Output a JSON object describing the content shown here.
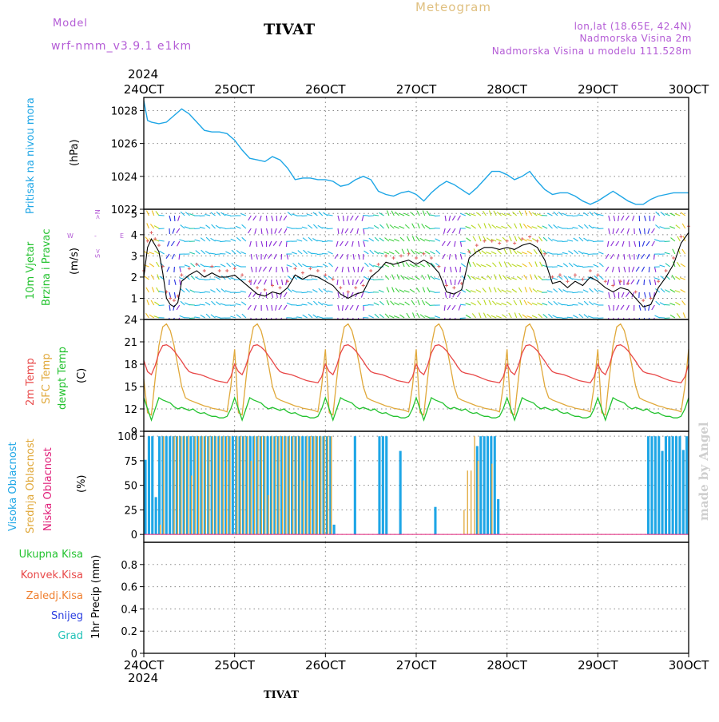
{
  "header": {
    "model_label": "Model",
    "model_name": "wrf-nmm_v3.9.1 e1km",
    "station": "TIVAT",
    "meteogram": "Meteogram",
    "lonlat": "lon,lat (18.65E, 42.4N)",
    "altitude": "Nadmorska Visina 2m",
    "model_altitude": "Nadmorska Visina u modelu 111.528m",
    "footer_station": "TIVAT",
    "watermark": "made by Angel"
  },
  "colors": {
    "pressure": "#1ea6e6",
    "t2m": "#e84848",
    "sfc": "#e0a83a",
    "dew": "#22c22e",
    "wind_speed": "#000000",
    "gust": "#e06060",
    "high_cloud": "#1ea6e6",
    "mid_cloud": "#e0a83a",
    "low_cloud": "#e0207a",
    "axis_label_blue": "#1ea6e6",
    "axis_label_green": "#22c22e",
    "model_purple": "#b45cd6"
  },
  "time_axis": {
    "year": "2024",
    "ticks": [
      "24OCT",
      "25OCT",
      "26OCT",
      "27OCT",
      "28OCT",
      "29OCT",
      "30OCT"
    ]
  },
  "panels": {
    "pressure": {
      "label": "Pritisak na nivou mora",
      "unit": "(hPa)",
      "yticks": [
        "1022",
        "1024",
        "1026",
        "1028"
      ]
    },
    "wind": {
      "label1": "10m Vjetar",
      "label2": "Brzina i Pravac",
      "unit": "(m/s)",
      "compass_w": "W",
      "compass_e": "E",
      "compass_s": "S<",
      "compass_n": ">N",
      "compass_dash": "-",
      "yticks": [
        "1",
        "2",
        "3",
        "4",
        "5"
      ]
    },
    "temp": {
      "label1": "2m Temp",
      "label2": "SFC Temp",
      "label3": "dewpt Temp",
      "unit": "(C)",
      "yticks": [
        "9",
        "12",
        "15",
        "18",
        "21",
        "24"
      ]
    },
    "cloud": {
      "label1": "Visoka Oblacnost",
      "label2": "Srednja Oblacnost",
      "label3": "Niska Oblacnost",
      "unit": "(%)",
      "yticks": [
        "0",
        "25",
        "50",
        "75",
        "100"
      ]
    },
    "precip": {
      "label1": "Ukupna Kisa",
      "label2": "Konvek.Kisa",
      "label3": "Zaledj.Kisa",
      "label4": "Snijeg",
      "label5": "Grad",
      "unit": "1hr Precip (mm)",
      "yticks": [
        "0",
        "0.2",
        "0.4",
        "0.6",
        "0.8"
      ]
    }
  },
  "chart_data": [
    {
      "type": "line",
      "name": "pressure",
      "x_hours": [
        0,
        1,
        2,
        4,
        6,
        8,
        10,
        12,
        14,
        16,
        18,
        20,
        22,
        24,
        26,
        28,
        30,
        32,
        34,
        36,
        38,
        40,
        42,
        44,
        46,
        48,
        50,
        52,
        54,
        56,
        58,
        60,
        62,
        64,
        66,
        68,
        70,
        72,
        74,
        76,
        78,
        80,
        82,
        84,
        86,
        88,
        90,
        92,
        94,
        96,
        98,
        100,
        102,
        104,
        106,
        108,
        110,
        112,
        114,
        116,
        118,
        120,
        122,
        124,
        126,
        128,
        130,
        132,
        134,
        136,
        138,
        140,
        142,
        144
      ],
      "values": [
        1028.6,
        1027.4,
        1027.3,
        1027.2,
        1027.3,
        1027.7,
        1028.1,
        1027.8,
        1027.3,
        1026.8,
        1026.7,
        1026.7,
        1026.6,
        1026.2,
        1025.6,
        1025.1,
        1025.0,
        1024.9,
        1025.2,
        1025.0,
        1024.5,
        1023.8,
        1023.9,
        1023.9,
        1023.8,
        1023.8,
        1023.7,
        1023.4,
        1023.5,
        1023.8,
        1024.0,
        1023.8,
        1023.1,
        1022.9,
        1022.8,
        1023.0,
        1023.1,
        1022.9,
        1022.5,
        1023.0,
        1023.4,
        1023.7,
        1023.5,
        1023.2,
        1022.9,
        1023.3,
        1023.8,
        1024.3,
        1024.3,
        1024.1,
        1023.8,
        1024.0,
        1024.3,
        1023.7,
        1023.2,
        1022.9,
        1023.0,
        1023.0,
        1022.8,
        1022.5,
        1022.3,
        1022.5,
        1022.8,
        1023.1,
        1022.8,
        1022.5,
        1022.3,
        1022.3,
        1022.6,
        1022.8,
        1022.9,
        1023.0,
        1023.0,
        1023.0
      ],
      "ylim": [
        1022,
        1028.8
      ]
    },
    {
      "type": "line",
      "name": "wind",
      "x_hours": [
        0,
        1,
        2,
        3,
        4,
        5,
        6,
        7,
        8,
        9,
        10,
        12,
        14,
        16,
        18,
        20,
        22,
        24,
        26,
        28,
        30,
        32,
        34,
        36,
        38,
        40,
        42,
        44,
        46,
        48,
        50,
        52,
        54,
        56,
        58,
        60,
        62,
        64,
        66,
        68,
        70,
        72,
        74,
        76,
        78,
        80,
        82,
        84,
        86,
        88,
        90,
        92,
        94,
        96,
        98,
        100,
        102,
        104,
        106,
        108,
        110,
        112,
        114,
        116,
        118,
        120,
        122,
        124,
        126,
        128,
        130,
        132,
        134,
        136,
        138,
        140,
        142,
        144
      ],
      "speed": [
        2.0,
        3.4,
        3.8,
        3.5,
        3.2,
        2.2,
        1.0,
        0.7,
        0.6,
        0.8,
        1.8,
        2.1,
        2.3,
        2.0,
        2.2,
        2.0,
        2.0,
        2.1,
        1.8,
        1.5,
        1.2,
        1.1,
        1.3,
        1.2,
        1.5,
        2.1,
        1.9,
        2.1,
        2.0,
        1.8,
        1.6,
        1.2,
        1.0,
        1.2,
        1.3,
        2.0,
        2.3,
        2.7,
        2.6,
        2.7,
        2.8,
        2.6,
        2.8,
        2.6,
        2.2,
        1.3,
        1.2,
        1.4,
        2.9,
        3.2,
        3.4,
        3.4,
        3.3,
        3.4,
        3.3,
        3.5,
        3.6,
        3.4,
        2.8,
        1.7,
        1.8,
        1.5,
        1.8,
        1.6,
        2.0,
        1.8,
        1.5,
        1.3,
        1.5,
        1.4,
        1.0,
        0.6,
        0.7,
        1.5,
        2.0,
        2.6,
        3.6,
        4.1
      ],
      "ylim": [
        0,
        5.2
      ]
    },
    {
      "type": "line",
      "name": "temperature",
      "x_hours": [
        0,
        1,
        2,
        3,
        4,
        5,
        6,
        7,
        8,
        9,
        10,
        11,
        12,
        13,
        14,
        15,
        16,
        17,
        18,
        19,
        20,
        21,
        22,
        23,
        24
      ],
      "t2m_day": [
        18.5,
        17.0,
        16.6,
        17.8,
        19.5,
        20.5,
        20.6,
        20.3,
        19.8,
        19.1,
        18.4,
        17.6,
        17.0,
        16.8,
        16.7,
        16.6,
        16.4,
        16.2,
        16.0,
        15.8,
        15.7,
        15.6,
        15.5,
        16.3,
        18.0
      ],
      "sfc_day": [
        16.0,
        11.5,
        11.2,
        16.0,
        20.5,
        23.0,
        23.4,
        22.5,
        20.5,
        17.8,
        15.0,
        13.5,
        13.2,
        13.0,
        12.8,
        12.6,
        12.4,
        12.3,
        12.1,
        12.0,
        11.9,
        11.8,
        11.6,
        15.0,
        20.0
      ],
      "dew_day": [
        13.5,
        12.0,
        10.5,
        12.0,
        13.5,
        13.2,
        13.0,
        12.8,
        12.3,
        12.0,
        12.2,
        12.0,
        11.8,
        12.0,
        11.6,
        11.4,
        11.5,
        11.2,
        11.0,
        11.0,
        10.8,
        10.8,
        11.0,
        12.0,
        13.5
      ],
      "ylim": [
        9,
        24
      ]
    },
    {
      "type": "bar",
      "name": "cloud",
      "high": [
        76,
        100,
        100,
        38,
        100,
        100,
        100,
        100,
        100,
        100,
        100,
        100,
        100,
        100,
        100,
        100,
        100,
        100,
        100,
        100,
        100,
        100,
        100,
        100,
        100,
        100,
        100,
        100,
        100,
        100,
        100,
        100,
        100,
        100,
        100,
        100,
        100,
        100,
        100,
        100,
        100,
        100,
        100,
        100,
        100,
        100,
        100,
        100,
        100,
        100,
        100,
        100,
        100,
        100,
        10,
        0,
        0,
        0,
        0,
        0,
        100,
        0,
        0,
        0,
        0,
        0,
        0,
        100,
        100,
        100,
        0,
        0,
        0,
        85,
        0,
        0,
        0,
        0,
        0,
        0,
        0,
        0,
        0,
        28,
        0,
        0,
        0,
        0,
        0,
        0,
        0,
        0,
        0,
        0,
        0,
        90,
        100,
        100,
        100,
        100,
        100,
        36,
        0,
        0,
        0,
        0,
        0,
        0,
        0,
        0,
        0,
        0,
        0,
        0,
        0,
        0,
        0,
        0,
        0,
        0,
        0,
        0,
        0,
        0,
        0,
        0,
        0,
        0,
        0,
        0,
        0,
        0,
        0,
        0,
        0,
        0,
        0,
        0,
        0,
        0,
        0,
        0,
        0,
        0,
        100,
        100,
        100,
        100,
        85,
        100,
        100,
        100,
        100,
        100,
        86,
        100
      ],
      "mid": [
        0,
        0,
        0,
        0,
        10,
        100,
        0,
        0,
        100,
        100,
        100,
        100,
        100,
        60,
        100,
        100,
        100,
        100,
        100,
        100,
        100,
        100,
        100,
        100,
        100,
        0,
        100,
        100,
        100,
        100,
        75,
        100,
        100,
        100,
        100,
        40,
        100,
        100,
        100,
        100,
        100,
        100,
        100,
        100,
        100,
        55,
        100,
        100,
        100,
        100,
        100,
        100,
        100,
        100,
        0,
        0,
        0,
        0,
        0,
        0,
        0,
        0,
        0,
        0,
        0,
        0,
        0,
        0,
        0,
        0,
        0,
        0,
        0,
        0,
        0,
        0,
        0,
        0,
        0,
        0,
        0,
        0,
        0,
        0,
        0,
        0,
        0,
        0,
        0,
        0,
        0,
        25,
        65,
        65,
        100,
        75,
        0,
        0,
        0,
        72,
        0,
        0,
        0,
        0,
        0,
        0,
        0,
        0,
        0,
        0,
        0,
        0,
        0,
        0,
        0,
        0,
        0,
        0,
        0,
        0,
        0,
        0,
        0,
        0,
        0,
        0,
        0,
        0,
        0,
        0,
        0,
        0,
        0,
        0,
        0,
        0,
        0,
        0,
        0,
        0,
        0,
        0,
        0,
        0,
        0,
        0,
        0,
        0,
        0,
        0,
        0,
        0
      ],
      "ylim": [
        0,
        100
      ]
    },
    {
      "type": "line",
      "name": "precip",
      "ylim": [
        0,
        1
      ]
    }
  ]
}
